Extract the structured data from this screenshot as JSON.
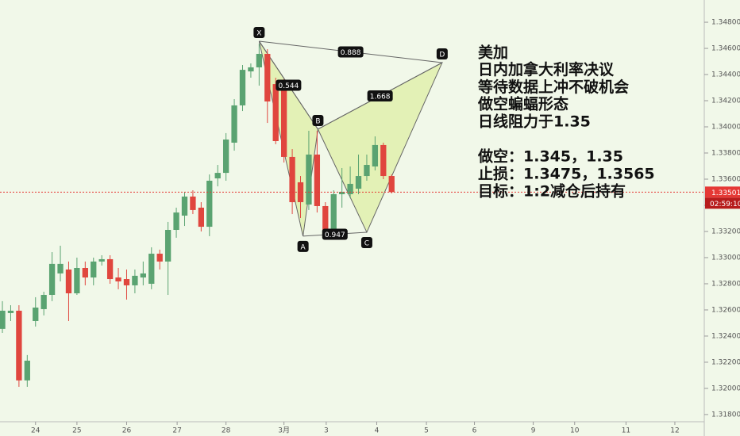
{
  "chart_data": {
    "type": "candlestick",
    "up_color": "#5aa371",
    "down_color": "#e0463e",
    "background": "#f1f8e9",
    "open": [
      1.32455,
      1.32576,
      1.32594,
      1.32061,
      1.32515,
      1.32606,
      1.32715,
      1.32879,
      1.32909,
      1.32727,
      1.32921,
      1.32848,
      1.3297,
      1.32988,
      1.32848,
      1.32836,
      1.32788,
      1.32848,
      1.328,
      1.3303,
      1.3297,
      1.33212,
      1.33321,
      1.33467,
      1.33382,
      1.33236,
      1.33606,
      1.33648,
      1.33879,
      1.34164,
      1.34424,
      1.34455,
      1.34558,
      1.34327,
      1.34315,
      1.3377,
      1.33576,
      1.33406,
      1.33788,
      1.33394,
      1.33212,
      1.33485,
      1.33485,
      1.33527,
      1.33624,
      1.33697,
      1.33861,
      1.33624
    ],
    "high": [
      1.32667,
      1.32636,
      1.32636,
      1.32255,
      1.32697,
      1.32739,
      1.33042,
      1.33091,
      1.3297,
      1.33,
      1.3297,
      1.33,
      1.33018,
      1.33018,
      1.32921,
      1.32909,
      1.32909,
      1.3297,
      1.33079,
      1.33061,
      1.33273,
      1.33382,
      1.33503,
      1.33515,
      1.33424,
      1.33636,
      1.33709,
      1.33952,
      1.34212,
      1.34473,
      1.34485,
      1.34636,
      1.34594,
      1.34376,
      1.34364,
      1.3383,
      1.33624,
      1.3397,
      1.3397,
      1.33424,
      1.33515,
      1.33685,
      1.33697,
      1.33788,
      1.33788,
      1.33927,
      1.33879,
      1.33636
    ],
    "low": [
      1.32424,
      1.32515,
      1.32012,
      1.32012,
      1.32473,
      1.32558,
      1.32667,
      1.32818,
      1.32515,
      1.32715,
      1.32788,
      1.32788,
      1.32939,
      1.328,
      1.32758,
      1.32679,
      1.32727,
      1.32788,
      1.32758,
      1.32909,
      1.32715,
      1.33152,
      1.33242,
      1.33333,
      1.332,
      1.33164,
      1.33545,
      1.33588,
      1.33818,
      1.34121,
      1.34376,
      1.34315,
      1.3403,
      1.33867,
      1.33727,
      1.33333,
      1.33303,
      1.33364,
      1.33345,
      1.33152,
      1.33182,
      1.33382,
      1.33455,
      1.33485,
      1.33588,
      1.33667,
      1.336,
      1.33491
    ],
    "close": [
      1.32594,
      1.32594,
      1.32061,
      1.32212,
      1.32618,
      1.32715,
      1.32952,
      1.32952,
      1.32727,
      1.32921,
      1.32848,
      1.3297,
      1.32988,
      1.32836,
      1.32818,
      1.32788,
      1.32861,
      1.32879,
      1.3303,
      1.3297,
      1.33212,
      1.33345,
      1.33467,
      1.33364,
      1.33236,
      1.33588,
      1.33648,
      1.33903,
      1.34164,
      1.34436,
      1.34455,
      1.34558,
      1.34194,
      1.33891,
      1.3377,
      1.33424,
      1.33424,
      1.33788,
      1.33394,
      1.33212,
      1.33485,
      1.33503,
      1.33564,
      1.33624,
      1.33709,
      1.33861,
      1.33624,
      1.33501
    ],
    "xlim": [
      -0.29,
      84.56
    ],
    "ylim": [
      1.31745,
      1.3497
    ],
    "xticks": [
      {
        "value": 4.0,
        "label": "24"
      },
      {
        "value": 9.0,
        "label": "25"
      },
      {
        "value": 15.0,
        "label": "26"
      },
      {
        "value": 21.1,
        "label": "27"
      },
      {
        "value": 27.0,
        "label": "28"
      },
      {
        "value": 34.0,
        "label": "3月"
      },
      {
        "value": 39.1,
        "label": "3"
      },
      {
        "value": 45.2,
        "label": "4"
      },
      {
        "value": 51.2,
        "label": "5"
      },
      {
        "value": 57.0,
        "label": "6"
      },
      {
        "value": 64.1,
        "label": "9"
      },
      {
        "value": 69.1,
        "label": "10"
      },
      {
        "value": 75.3,
        "label": "11"
      },
      {
        "value": 81.2,
        "label": "12"
      }
    ],
    "yticks": [
      {
        "value": 1.318,
        "label": "1.31800"
      },
      {
        "value": 1.32,
        "label": "1.32000"
      },
      {
        "value": 1.322,
        "label": "1.32200"
      },
      {
        "value": 1.324,
        "label": "1.32400"
      },
      {
        "value": 1.326,
        "label": "1.32600"
      },
      {
        "value": 1.328,
        "label": "1.32800"
      },
      {
        "value": 1.33,
        "label": "1.33000"
      },
      {
        "value": 1.332,
        "label": "1.33200"
      },
      {
        "value": 1.334,
        "label": "1.33400"
      },
      {
        "value": 1.336,
        "label": "1.33600"
      },
      {
        "value": 1.338,
        "label": "1.33800"
      },
      {
        "value": 1.34,
        "label": "1.34000"
      },
      {
        "value": 1.342,
        "label": "1.34200"
      },
      {
        "value": 1.344,
        "label": "1.34400"
      },
      {
        "value": 1.346,
        "label": "1.34600"
      },
      {
        "value": 1.348,
        "label": "1.34800"
      }
    ],
    "last_price": {
      "value": 1.33501,
      "label": "1.33501"
    },
    "countdown": "02:59:10",
    "price_line_color": "#e53935",
    "pattern": {
      "points": [
        {
          "label": "X",
          "x": 31.0,
          "y": 1.34655
        },
        {
          "label": "A",
          "x": 36.3,
          "y": 1.33164
        },
        {
          "label": "B",
          "x": 38.1,
          "y": 1.33982
        },
        {
          "label": "C",
          "x": 44.0,
          "y": 1.33194
        },
        {
          "label": "D",
          "x": 53.1,
          "y": 1.34491
        }
      ],
      "ratios": [
        0.544,
        0.888,
        1.668,
        0.947
      ]
    },
    "notes": [
      "美加",
      "日内加拿大利率决议",
      "等待数据上冲不破机会",
      "做空蝙蝠形态",
      "日线阻力于1.35"
    ],
    "trade": [
      "做空：1.345，1.35",
      "止损：1.3475，1.3565",
      "目标：1:2减仓后持有"
    ]
  }
}
